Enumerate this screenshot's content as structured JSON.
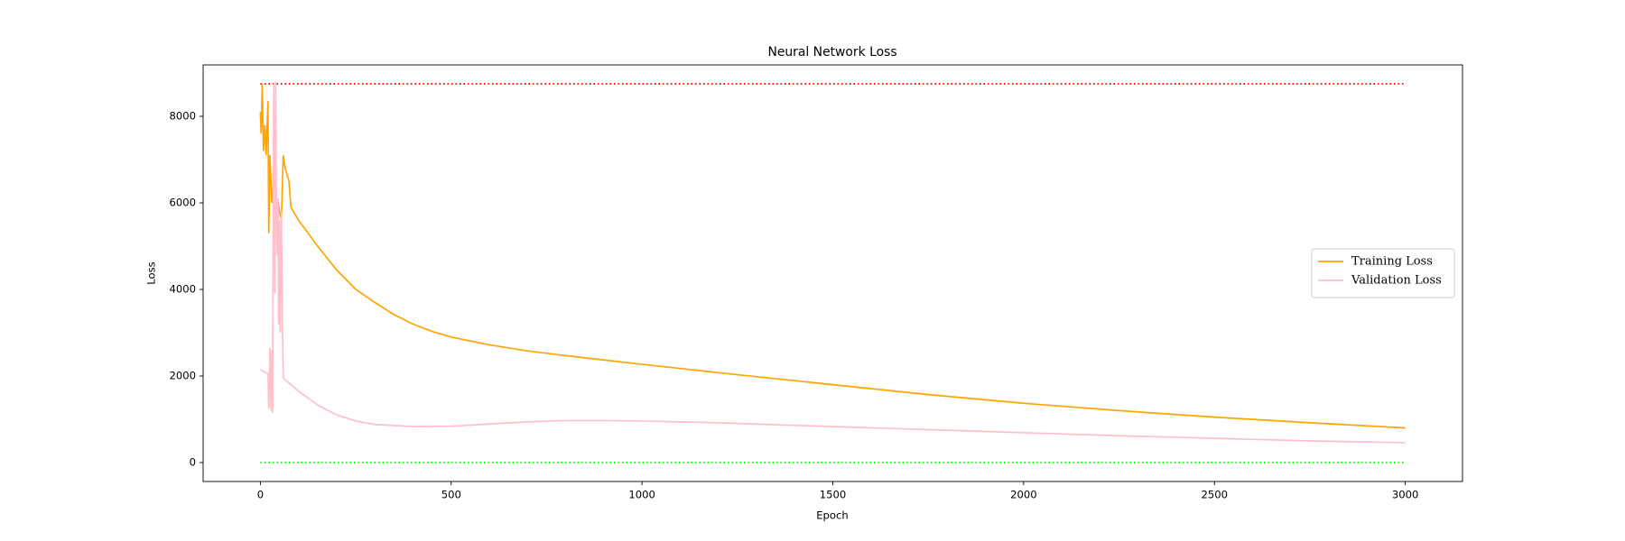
{
  "chart_data": {
    "type": "line",
    "title": "Neural Network Loss",
    "x_label": "Epoch",
    "y_label": "Loss",
    "xlim": [
      -150,
      3150
    ],
    "ylim": [
      -437.5,
      9187.5
    ],
    "xticks": [
      0,
      500,
      1000,
      1500,
      2000,
      2500,
      3000
    ],
    "yticks": [
      0,
      2000,
      4000,
      6000,
      8000
    ],
    "legend": "center right",
    "series": [
      {
        "name": "Training Loss",
        "color": "orange",
        "x": [
          0,
          2,
          5,
          8,
          12,
          15,
          20,
          22,
          25,
          30,
          35,
          40,
          45,
          50,
          55,
          60,
          65,
          75,
          80,
          100,
          150,
          200,
          250,
          300,
          350,
          400,
          450,
          500,
          600,
          700,
          800,
          900,
          1000,
          1250,
          1500,
          1750,
          2000,
          2250,
          2500,
          2750,
          3000
        ],
        "values": [
          8100,
          7600,
          8750,
          7200,
          7800,
          7100,
          8350,
          5300,
          7100,
          6000,
          6500,
          5900,
          6100,
          5800,
          5600,
          7100,
          6800,
          6500,
          5900,
          5600,
          5000,
          4450,
          4000,
          3700,
          3420,
          3200,
          3030,
          2900,
          2720,
          2580,
          2470,
          2370,
          2270,
          2030,
          1800,
          1570,
          1370,
          1200,
          1050,
          920,
          800
        ]
      },
      {
        "name": "Validation Loss",
        "color": "pink",
        "x": [
          0,
          10,
          20,
          22,
          25,
          28,
          30,
          32,
          35,
          38,
          40,
          42,
          44,
          46,
          48,
          50,
          52,
          55,
          58,
          60,
          100,
          150,
          200,
          250,
          300,
          400,
          500,
          600,
          700,
          800,
          900,
          1000,
          1200,
          1400,
          1500,
          1750,
          2000,
          2250,
          2500,
          2750,
          3000
        ],
        "values": [
          2150,
          2100,
          2050,
          1250,
          2650,
          1200,
          2600,
          1150,
          8750,
          3900,
          8800,
          6100,
          4800,
          6100,
          3200,
          5600,
          3000,
          5800,
          3100,
          1950,
          1650,
          1330,
          1100,
          960,
          880,
          830,
          840,
          890,
          940,
          970,
          970,
          960,
          920,
          860,
          830,
          760,
          690,
          620,
          560,
          500,
          460
        ]
      }
    ],
    "hlines": [
      {
        "value": 8750,
        "xmin": 0,
        "xmax": 3000,
        "color": "red"
      },
      {
        "value": 0,
        "xmin": 0,
        "xmax": 3000,
        "color": "lime"
      }
    ]
  }
}
